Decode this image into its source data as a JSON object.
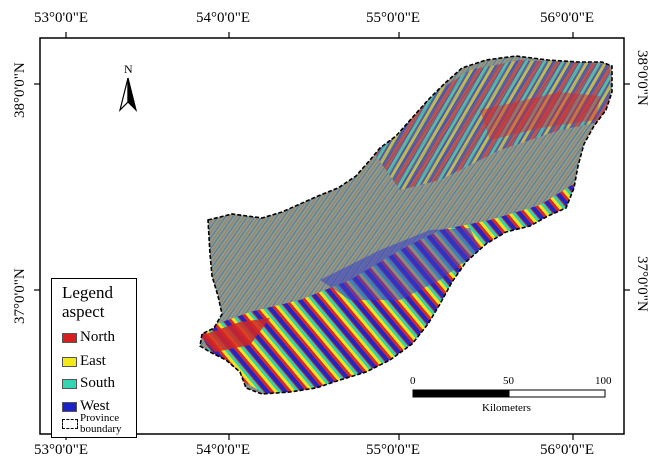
{
  "map": {
    "lon_labels": [
      "53°0'0\"E",
      "54°0'0\"E",
      "55°0'0\"E",
      "56°0'0\"E"
    ],
    "lat_labels": [
      "38°0'0\"N",
      "37°0'0\"N"
    ],
    "north_letter": "N",
    "legend": {
      "title_line1": "Legend",
      "title_line2": "aspect",
      "items": [
        {
          "label": "North",
          "color": "#d62020"
        },
        {
          "label": "East",
          "color": "#f2e81a"
        },
        {
          "label": "South",
          "color": "#33d6b0"
        },
        {
          "label": "West",
          "color": "#1a22c8"
        }
      ],
      "boundary_line1": "Province",
      "boundary_line2": "boundary"
    },
    "scale": {
      "ticks": [
        "0",
        "50",
        "100"
      ],
      "unit": "Kilometers"
    }
  }
}
